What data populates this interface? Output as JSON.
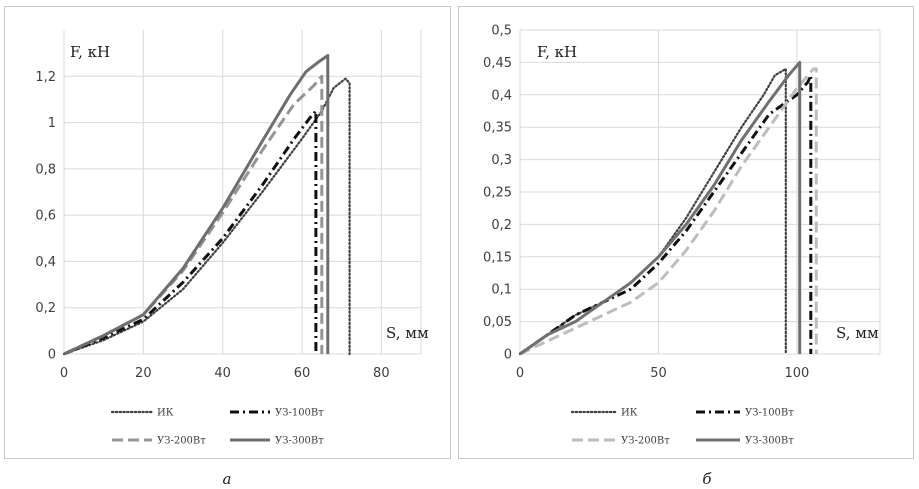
{
  "chart_data": [
    {
      "type": "line",
      "panel_label": "а",
      "ylabel": "F, кН",
      "xlabel": "S, мм",
      "xlim": [
        0,
        90
      ],
      "ylim": [
        0,
        1.4
      ],
      "x_ticks": [
        0,
        20,
        40,
        60,
        80
      ],
      "x_tick_labels": [
        "0",
        "20",
        "40",
        "60",
        "80"
      ],
      "y_ticks": [
        0,
        0.2,
        0.4,
        0.6,
        0.8,
        1.0,
        1.2
      ],
      "y_tick_labels": [
        "0",
        "0,2",
        "0,4",
        "0,6",
        "0,8",
        "1",
        "1,2"
      ],
      "grid": true,
      "legend_position": "bottom",
      "series": [
        {
          "name": "ИК",
          "color": "#404040",
          "dash": "dotted",
          "points": [
            [
              0,
              0
            ],
            [
              10,
              0.06
            ],
            [
              20,
              0.14
            ],
            [
              30,
              0.28
            ],
            [
              40,
              0.48
            ],
            [
              50,
              0.7
            ],
            [
              60,
              0.93
            ],
            [
              65,
              1.05
            ],
            [
              68,
              1.15
            ],
            [
              71,
              1.19
            ],
            [
              72,
              1.17
            ],
            [
              72,
              0
            ]
          ]
        },
        {
          "name": "УЗ-100Вт",
          "color": "#101010",
          "dash": "dashdot",
          "points": [
            [
              0,
              0
            ],
            [
              10,
              0.07
            ],
            [
              20,
              0.15
            ],
            [
              30,
              0.31
            ],
            [
              40,
              0.5
            ],
            [
              50,
              0.73
            ],
            [
              58,
              0.93
            ],
            [
              62,
              1.02
            ],
            [
              63.5,
              1.05
            ],
            [
              63.5,
              0
            ]
          ]
        },
        {
          "name": "УЗ-200Вт",
          "color": "#959595",
          "dash": "dashed",
          "points": [
            [
              0,
              0
            ],
            [
              10,
              0.08
            ],
            [
              20,
              0.17
            ],
            [
              30,
              0.36
            ],
            [
              40,
              0.61
            ],
            [
              50,
              0.88
            ],
            [
              58,
              1.08
            ],
            [
              63,
              1.16
            ],
            [
              65,
              1.2
            ],
            [
              65,
              0
            ]
          ]
        },
        {
          "name": "УЗ-300Вт",
          "color": "#6e6e6e",
          "dash": "solid",
          "points": [
            [
              0,
              0
            ],
            [
              10,
              0.08
            ],
            [
              20,
              0.17
            ],
            [
              30,
              0.37
            ],
            [
              40,
              0.63
            ],
            [
              50,
              0.92
            ],
            [
              57,
              1.12
            ],
            [
              61,
              1.22
            ],
            [
              64,
              1.26
            ],
            [
              66.5,
              1.29
            ],
            [
              66.5,
              0
            ]
          ]
        }
      ]
    },
    {
      "type": "line",
      "panel_label": "б",
      "ylabel": "F, кН",
      "xlabel": "S, мм",
      "xlim": [
        0,
        130
      ],
      "ylim": [
        0,
        0.5
      ],
      "x_ticks": [
        0,
        50,
        100
      ],
      "x_tick_labels": [
        "0",
        "50",
        "100"
      ],
      "y_ticks": [
        0,
        0.05,
        0.1,
        0.15,
        0.2,
        0.25,
        0.3,
        0.35,
        0.4,
        0.45,
        0.5
      ],
      "y_tick_labels": [
        "0",
        "0,05",
        "0,1",
        "0,15",
        "0,2",
        "0,25",
        "0,3",
        "0,35",
        "0,4",
        "0,45",
        "0,5"
      ],
      "grid": true,
      "legend_position": "bottom",
      "series": [
        {
          "name": "ИК",
          "color": "#404040",
          "dash": "dotted",
          "points": [
            [
              0,
              0
            ],
            [
              10,
              0.03
            ],
            [
              20,
              0.06
            ],
            [
              30,
              0.08
            ],
            [
              40,
              0.11
            ],
            [
              50,
              0.15
            ],
            [
              60,
              0.21
            ],
            [
              70,
              0.28
            ],
            [
              80,
              0.35
            ],
            [
              88,
              0.4
            ],
            [
              92,
              0.43
            ],
            [
              96,
              0.44
            ],
            [
              96,
              0
            ]
          ]
        },
        {
          "name": "УЗ-100Вт",
          "color": "#101010",
          "dash": "dashdot",
          "points": [
            [
              0,
              0
            ],
            [
              10,
              0.03
            ],
            [
              20,
              0.06
            ],
            [
              30,
              0.08
            ],
            [
              40,
              0.1
            ],
            [
              50,
              0.14
            ],
            [
              60,
              0.19
            ],
            [
              70,
              0.25
            ],
            [
              80,
              0.31
            ],
            [
              90,
              0.37
            ],
            [
              100,
              0.4
            ],
            [
              104,
              0.42
            ],
            [
              105,
              0.43
            ],
            [
              105,
              0
            ]
          ]
        },
        {
          "name": "УЗ-200Вт",
          "color": "#bdbdbd",
          "dash": "dashed",
          "points": [
            [
              0,
              0
            ],
            [
              10,
              0.02
            ],
            [
              20,
              0.04
            ],
            [
              30,
              0.06
            ],
            [
              40,
              0.08
            ],
            [
              50,
              0.11
            ],
            [
              60,
              0.16
            ],
            [
              70,
              0.22
            ],
            [
              80,
              0.29
            ],
            [
              90,
              0.35
            ],
            [
              100,
              0.41
            ],
            [
              106,
              0.44
            ],
            [
              107,
              0.44
            ],
            [
              107,
              0
            ]
          ]
        },
        {
          "name": "УЗ-300Вт",
          "color": "#707070",
          "dash": "solid",
          "points": [
            [
              0,
              0
            ],
            [
              10,
              0.03
            ],
            [
              20,
              0.05
            ],
            [
              30,
              0.08
            ],
            [
              40,
              0.11
            ],
            [
              50,
              0.15
            ],
            [
              60,
              0.2
            ],
            [
              70,
              0.26
            ],
            [
              80,
              0.33
            ],
            [
              90,
              0.39
            ],
            [
              97,
              0.43
            ],
            [
              101,
              0.45
            ],
            [
              101,
              0
            ]
          ]
        }
      ]
    }
  ]
}
